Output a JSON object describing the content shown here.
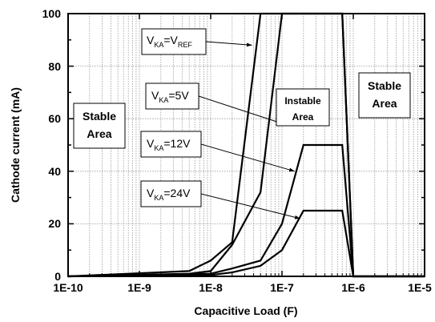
{
  "chart_data": {
    "type": "line",
    "xlabel": "Capacitive Load (F)",
    "ylabel": "Cathode current (mA)",
    "x_scale": "log",
    "xlim": [
      1e-10,
      1e-05
    ],
    "ylim": [
      0,
      100
    ],
    "x_tick_labels": [
      "1E-10",
      "1E-9",
      "1E-8",
      "1E-7",
      "1E-6",
      "1E-5"
    ],
    "y_tick_labels": [
      "0",
      "20",
      "40",
      "60",
      "80",
      "100"
    ],
    "grid": "on",
    "series": [
      {
        "name": "VKA=VREF",
        "points": [
          [
            1e-10,
            0
          ],
          [
            5e-09,
            2
          ],
          [
            1e-08,
            6
          ],
          [
            2e-08,
            13
          ],
          [
            5e-08,
            100
          ],
          [
            7e-07,
            100
          ],
          [
            1e-06,
            0
          ],
          [
            1e-05,
            0
          ]
        ]
      },
      {
        "name": "VKA=5V",
        "points": [
          [
            1e-10,
            0
          ],
          [
            5e-09,
            1
          ],
          [
            1e-08,
            2
          ],
          [
            2e-08,
            12
          ],
          [
            5e-08,
            32
          ],
          [
            1e-07,
            100
          ],
          [
            7e-07,
            100
          ],
          [
            1e-06,
            0
          ],
          [
            1e-05,
            0
          ]
        ]
      },
      {
        "name": "VKA=12V",
        "points": [
          [
            1e-10,
            0
          ],
          [
            1e-08,
            1
          ],
          [
            2e-08,
            3
          ],
          [
            5e-08,
            6
          ],
          [
            1e-07,
            20
          ],
          [
            2e-07,
            50
          ],
          [
            7e-07,
            50
          ],
          [
            1e-06,
            0
          ],
          [
            1e-05,
            0
          ]
        ]
      },
      {
        "name": "VKA=24V",
        "points": [
          [
            1e-10,
            0
          ],
          [
            1e-08,
            0.5
          ],
          [
            2e-08,
            1.5
          ],
          [
            5e-08,
            4
          ],
          [
            1e-07,
            10
          ],
          [
            2e-07,
            25
          ],
          [
            7e-07,
            25
          ],
          [
            1e-06,
            0
          ],
          [
            1e-05,
            0
          ]
        ]
      }
    ],
    "annotations": {
      "labels": [
        {
          "id": "vref",
          "main": "V",
          "sub": "KA",
          "mid": "=V",
          "sub2": "REF",
          "tail": ""
        },
        {
          "id": "v5",
          "main": "V",
          "sub": "KA",
          "mid": "=5V",
          "sub2": "",
          "tail": ""
        },
        {
          "id": "v12",
          "main": "V",
          "sub": "KA",
          "mid": "=12V",
          "sub2": "",
          "tail": ""
        },
        {
          "id": "v24",
          "main": "V",
          "sub": "KA",
          "mid": "=24V",
          "sub2": "",
          "tail": ""
        }
      ],
      "regions": {
        "stable_left": [
          "Stable",
          "Area"
        ],
        "instable": [
          "Instable",
          "Area"
        ],
        "stable_right": [
          "Stable",
          "Area"
        ]
      }
    }
  }
}
